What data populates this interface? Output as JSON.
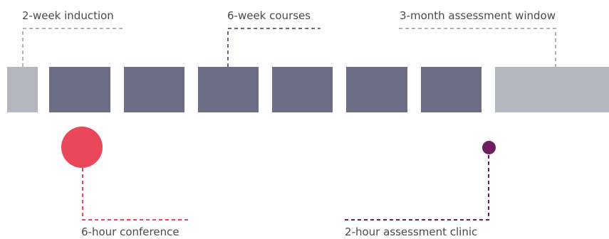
{
  "labels": {
    "induction": "2-week induction",
    "courses": "6-week courses",
    "assessment_window": "3-month assessment window",
    "conference": "6-hour conference",
    "clinic": "2-hour assessment clinic"
  },
  "blocks": [
    {
      "phase": "induction"
    },
    {
      "phase": "course"
    },
    {
      "phase": "course"
    },
    {
      "phase": "course"
    },
    {
      "phase": "course"
    },
    {
      "phase": "course"
    },
    {
      "phase": "course"
    },
    {
      "phase": "assessment-window"
    }
  ],
  "colors": {
    "light_block": "#b4b6c0",
    "dark_block": "#6a6d83",
    "bracket_gray": "#b3b3b3",
    "bracket_dark": "#6a6d83",
    "conference": "#e8485a",
    "clinic": "#6d1e5e",
    "text": "#4a4a4f"
  }
}
